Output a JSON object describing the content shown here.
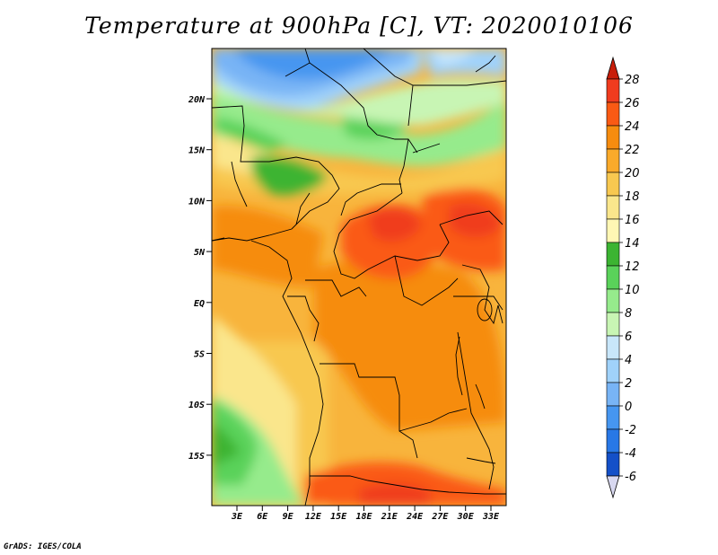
{
  "title": "Temperature at 900hPa [C], VT: 2020010106",
  "credit": "GrADS: IGES/COLA",
  "map": {
    "lon_ticks": [
      "3E",
      "6E",
      "9E",
      "12E",
      "15E",
      "18E",
      "21E",
      "24E",
      "27E",
      "30E",
      "33E"
    ],
    "lat_ticks": [
      "20N",
      "15N",
      "10N",
      "5N",
      "EQ",
      "5S",
      "10S",
      "15S"
    ]
  },
  "colorbar": {
    "labels": [
      "28",
      "26",
      "24",
      "22",
      "20",
      "18",
      "16",
      "14",
      "12",
      "10",
      "8",
      "6",
      "4",
      "2",
      "0",
      "-2",
      "-4",
      "-6"
    ],
    "colors": [
      "#c81e0a",
      "#f03c1e",
      "#fa5a14",
      "#f68c0f",
      "#faaa2a",
      "#f8c850",
      "#fae68c",
      "#fff7b4",
      "#3cb432",
      "#5ad25a",
      "#96eb8c",
      "#c8f5b4",
      "#c8e6fa",
      "#a0d2fa",
      "#78b4f5",
      "#4696f0",
      "#2878e6",
      "#1450c8",
      "#0a2a96",
      "#000a6e"
    ],
    "end_low_color": "#d8d8f0",
    "end_high_color": "#c81e0a"
  }
}
